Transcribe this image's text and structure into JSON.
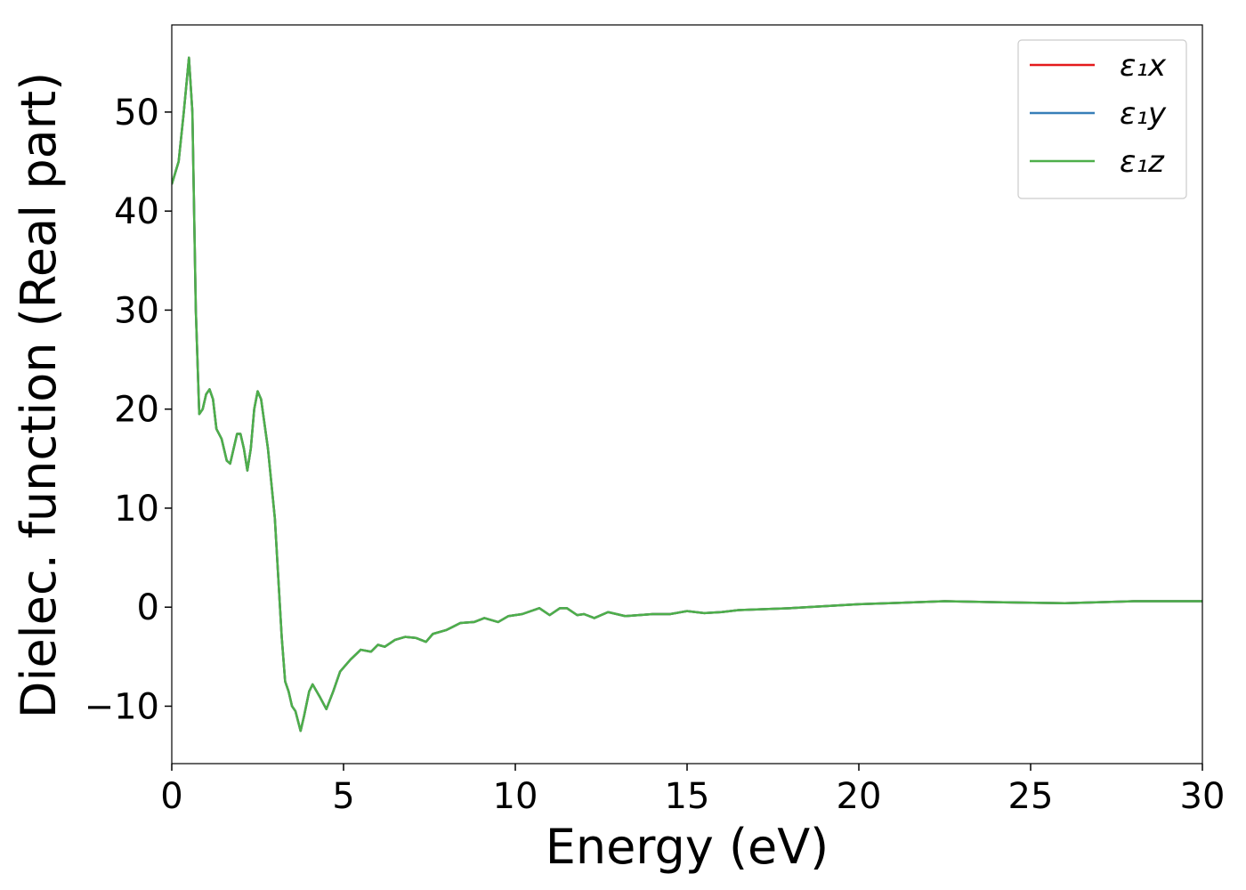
{
  "chart_data": {
    "type": "line",
    "xlabel": "Energy (eV)",
    "ylabel": "Dielec. function (Real part)",
    "x": [
      0,
      0.2,
      0.35,
      0.5,
      0.6,
      0.7,
      0.8,
      0.9,
      1.0,
      1.1,
      1.2,
      1.3,
      1.45,
      1.6,
      1.7,
      1.8,
      1.9,
      2.0,
      2.1,
      2.2,
      2.3,
      2.4,
      2.5,
      2.6,
      2.8,
      3.0,
      3.1,
      3.2,
      3.3,
      3.4,
      3.5,
      3.6,
      3.75,
      3.85,
      4.0,
      4.1,
      4.3,
      4.5,
      4.7,
      4.9,
      5.2,
      5.5,
      5.8,
      6.0,
      6.2,
      6.5,
      6.8,
      7.1,
      7.4,
      7.6,
      8.0,
      8.4,
      8.8,
      9.1,
      9.5,
      9.8,
      10.2,
      10.7,
      11.0,
      11.3,
      11.5,
      11.8,
      12.0,
      12.3,
      12.7,
      13.2,
      14.0,
      14.5,
      15.0,
      15.5,
      16.0,
      16.5,
      18,
      20,
      22.5,
      24,
      26,
      28,
      30
    ],
    "series": [
      {
        "name": "ε₁x",
        "color": "#e41a1c",
        "values": [
          42.7,
          45,
          50,
          55.5,
          50,
          30,
          19.5,
          20,
          21.5,
          22,
          21,
          18,
          17,
          14.8,
          14.5,
          16,
          17.5,
          17.5,
          16,
          13.8,
          16,
          20,
          21.8,
          21,
          16,
          9,
          3,
          -3,
          -7.5,
          -8.5,
          -10,
          -10.5,
          -12.5,
          -11,
          -8.5,
          -7.8,
          -9,
          -10.3,
          -8.5,
          -6.5,
          -5.3,
          -4.3,
          -4.5,
          -3.8,
          -4,
          -3.3,
          -3,
          -3.1,
          -3.5,
          -2.7,
          -2.3,
          -1.6,
          -1.5,
          -1.1,
          -1.5,
          -0.9,
          -0.7,
          -0.1,
          -0.8,
          -0.1,
          -0.1,
          -0.8,
          -0.7,
          -1.1,
          -0.5,
          -0.9,
          -0.7,
          -0.7,
          -0.4,
          -0.6,
          -0.5,
          -0.3,
          -0.1,
          0.3,
          0.6,
          0.5,
          0.4,
          0.6,
          0.6
        ]
      },
      {
        "name": "ε₁y",
        "color": "#377eb8",
        "values": [
          42.7,
          45,
          50,
          55.5,
          50,
          30,
          19.5,
          20,
          21.5,
          22,
          21,
          18,
          17,
          14.8,
          14.5,
          16,
          17.5,
          17.5,
          16,
          13.8,
          16,
          20,
          21.8,
          21,
          16,
          9,
          3,
          -3,
          -7.5,
          -8.5,
          -10,
          -10.5,
          -12.5,
          -11,
          -8.5,
          -7.8,
          -9,
          -10.3,
          -8.5,
          -6.5,
          -5.3,
          -4.3,
          -4.5,
          -3.8,
          -4,
          -3.3,
          -3,
          -3.1,
          -3.5,
          -2.7,
          -2.3,
          -1.6,
          -1.5,
          -1.1,
          -1.5,
          -0.9,
          -0.7,
          -0.1,
          -0.8,
          -0.1,
          -0.1,
          -0.8,
          -0.7,
          -1.1,
          -0.5,
          -0.9,
          -0.7,
          -0.7,
          -0.4,
          -0.6,
          -0.5,
          -0.3,
          -0.1,
          0.3,
          0.6,
          0.5,
          0.4,
          0.6,
          0.6
        ]
      },
      {
        "name": "ε₁z",
        "color": "#4daf4a",
        "values": [
          42.7,
          45,
          50,
          55.5,
          50,
          30,
          19.5,
          20,
          21.5,
          22,
          21,
          18,
          17,
          14.8,
          14.5,
          16,
          17.5,
          17.5,
          16,
          13.8,
          16,
          20,
          21.8,
          21,
          16,
          9,
          3,
          -3,
          -7.5,
          -8.5,
          -10,
          -10.5,
          -12.5,
          -11,
          -8.5,
          -7.8,
          -9,
          -10.3,
          -8.5,
          -6.5,
          -5.3,
          -4.3,
          -4.5,
          -3.8,
          -4,
          -3.3,
          -3,
          -3.1,
          -3.5,
          -2.7,
          -2.3,
          -1.6,
          -1.5,
          -1.1,
          -1.5,
          -0.9,
          -0.7,
          -0.1,
          -0.8,
          -0.1,
          -0.1,
          -0.8,
          -0.7,
          -1.1,
          -0.5,
          -0.9,
          -0.7,
          -0.7,
          -0.4,
          -0.6,
          -0.5,
          -0.3,
          -0.1,
          0.3,
          0.6,
          0.5,
          0.4,
          0.6,
          0.6
        ]
      }
    ],
    "xlim": [
      0,
      30
    ],
    "xticks": [
      0,
      5,
      10,
      15,
      20,
      25,
      30
    ],
    "ylim": [
      -15.8,
      58.8
    ],
    "yticks": [
      {
        "value": -10,
        "label": "−10"
      },
      0,
      10,
      20,
      30,
      40,
      50
    ],
    "grid": false,
    "legend": "upper right"
  }
}
